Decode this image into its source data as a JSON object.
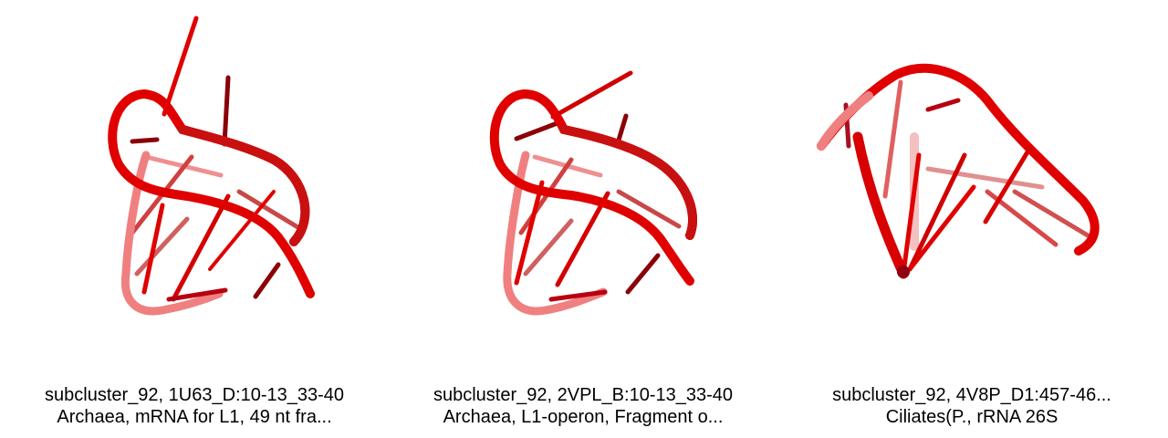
{
  "panels": [
    {
      "line1": "subcluster_92, 1U63_D:10-13_33-40",
      "line2": "Archaea, mRNA for L1, 49 nt fra..."
    },
    {
      "line1": "subcluster_92, 2VPL_B:10-13_33-40",
      "line2": "Archaea, L1-operon, Fragment o..."
    },
    {
      "line1": "subcluster_92, 4V8P_D1:457-46...",
      "line2": "Ciliates(P., rRNA 26S"
    }
  ],
  "colors": {
    "strand": "#e00000",
    "strand_faded": "#f07070",
    "base_dark": "#8a0008",
    "base": "#d80000",
    "base_faded": "#e87a7a"
  }
}
